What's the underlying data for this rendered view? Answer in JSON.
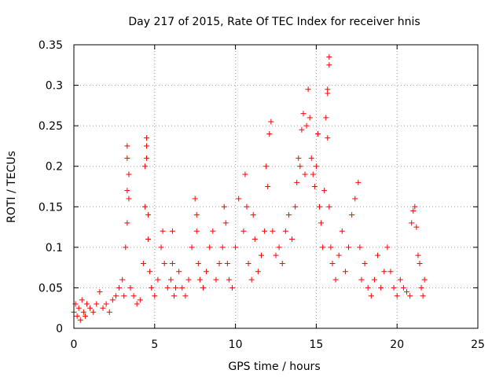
{
  "chart_data": {
    "type": "scatter",
    "title": "Day 217 of 2015, Rate Of TEC Index for receiver hnis",
    "xlabel": "GPS time / hours",
    "ylabel": "ROTI / TECUs",
    "xlim": [
      0,
      25
    ],
    "ylim": [
      0,
      0.35
    ],
    "xticks": [
      0,
      5,
      10,
      15,
      20,
      25
    ],
    "xtick_labels": [
      "0",
      "5",
      "10",
      "15",
      "20",
      "25"
    ],
    "yticks": [
      0,
      0.05,
      0.1,
      0.15,
      0.2,
      0.25,
      0.3,
      0.35
    ],
    "ytick_labels": [
      "0",
      "0.05",
      "0.1",
      "0.15",
      "0.2",
      "0.25",
      "0.3",
      "0.35"
    ],
    "grid": true,
    "marker": "+",
    "series": [
      {
        "color": "#ff0000",
        "x": [
          0.0,
          0.1,
          0.2,
          0.3,
          0.4,
          0.5,
          0.6,
          0.7,
          0.8,
          1.0,
          1.2,
          1.4,
          1.6,
          1.8,
          2.0,
          2.2,
          2.4,
          2.6,
          2.8,
          3.0,
          3.1,
          3.2,
          3.3,
          3.3,
          3.3,
          3.3,
          3.4,
          3.4,
          3.5,
          3.7,
          3.9,
          4.1,
          4.3,
          4.4,
          4.4,
          4.5,
          4.5,
          4.5,
          4.6,
          4.6,
          4.7,
          4.8,
          5.0,
          5.2,
          5.4,
          5.5,
          5.6,
          5.8,
          6.0,
          6.1,
          6.1,
          6.2,
          6.3,
          6.5,
          6.7,
          6.9,
          7.1,
          7.3,
          7.5,
          7.6,
          7.6,
          7.7,
          7.8,
          8.0,
          8.2,
          8.4,
          8.6,
          8.8,
          9.0,
          9.2,
          9.3,
          9.4,
          9.5,
          9.6,
          9.8,
          10.0,
          10.2,
          10.5,
          10.6,
          10.7,
          10.8,
          11.0,
          11.1,
          11.2,
          11.4,
          11.6,
          11.8,
          11.9,
          12.0,
          12.1,
          12.2,
          12.3,
          12.5,
          12.7,
          12.9,
          13.1,
          13.3,
          13.5,
          13.7,
          13.8,
          13.9,
          14.0,
          14.1,
          14.2,
          14.3,
          14.4,
          14.5,
          14.6,
          14.7,
          14.8,
          14.9,
          15.0,
          15.1,
          15.2,
          15.3,
          15.4,
          15.5,
          15.6,
          15.7,
          15.7,
          15.7,
          15.8,
          15.8,
          15.8,
          15.9,
          16.0,
          16.2,
          16.4,
          16.6,
          16.8,
          17.0,
          17.2,
          17.4,
          17.6,
          17.7,
          17.8,
          18.0,
          18.2,
          18.4,
          18.6,
          18.8,
          19.0,
          19.2,
          19.4,
          19.6,
          19.8,
          20.0,
          20.2,
          20.4,
          20.6,
          20.8,
          20.9,
          21.0,
          21.1,
          21.2,
          21.3,
          21.4,
          21.5,
          21.6,
          21.7
        ],
        "y": [
          0.02,
          0.03,
          0.015,
          0.025,
          0.01,
          0.035,
          0.02,
          0.015,
          0.03,
          0.025,
          0.02,
          0.03,
          0.045,
          0.025,
          0.03,
          0.02,
          0.035,
          0.04,
          0.05,
          0.06,
          0.04,
          0.1,
          0.13,
          0.17,
          0.21,
          0.225,
          0.16,
          0.19,
          0.05,
          0.04,
          0.03,
          0.035,
          0.08,
          0.15,
          0.2,
          0.235,
          0.225,
          0.21,
          0.14,
          0.11,
          0.07,
          0.05,
          0.04,
          0.06,
          0.1,
          0.12,
          0.08,
          0.05,
          0.06,
          0.12,
          0.08,
          0.04,
          0.05,
          0.07,
          0.05,
          0.04,
          0.06,
          0.1,
          0.16,
          0.14,
          0.12,
          0.08,
          0.06,
          0.05,
          0.07,
          0.1,
          0.12,
          0.06,
          0.08,
          0.1,
          0.15,
          0.13,
          0.08,
          0.06,
          0.05,
          0.1,
          0.16,
          0.12,
          0.19,
          0.15,
          0.08,
          0.06,
          0.14,
          0.11,
          0.07,
          0.09,
          0.12,
          0.2,
          0.175,
          0.24,
          0.255,
          0.12,
          0.09,
          0.1,
          0.08,
          0.12,
          0.14,
          0.11,
          0.15,
          0.18,
          0.21,
          0.2,
          0.245,
          0.265,
          0.19,
          0.25,
          0.295,
          0.26,
          0.21,
          0.19,
          0.175,
          0.2,
          0.24,
          0.15,
          0.13,
          0.1,
          0.17,
          0.26,
          0.235,
          0.29,
          0.295,
          0.325,
          0.335,
          0.15,
          0.1,
          0.08,
          0.06,
          0.09,
          0.12,
          0.07,
          0.1,
          0.14,
          0.16,
          0.18,
          0.1,
          0.06,
          0.08,
          0.05,
          0.04,
          0.06,
          0.09,
          0.05,
          0.07,
          0.1,
          0.07,
          0.05,
          0.04,
          0.06,
          0.05,
          0.045,
          0.04,
          0.13,
          0.145,
          0.15,
          0.125,
          0.09,
          0.08,
          0.05,
          0.04,
          0.06
        ]
      }
    ]
  }
}
